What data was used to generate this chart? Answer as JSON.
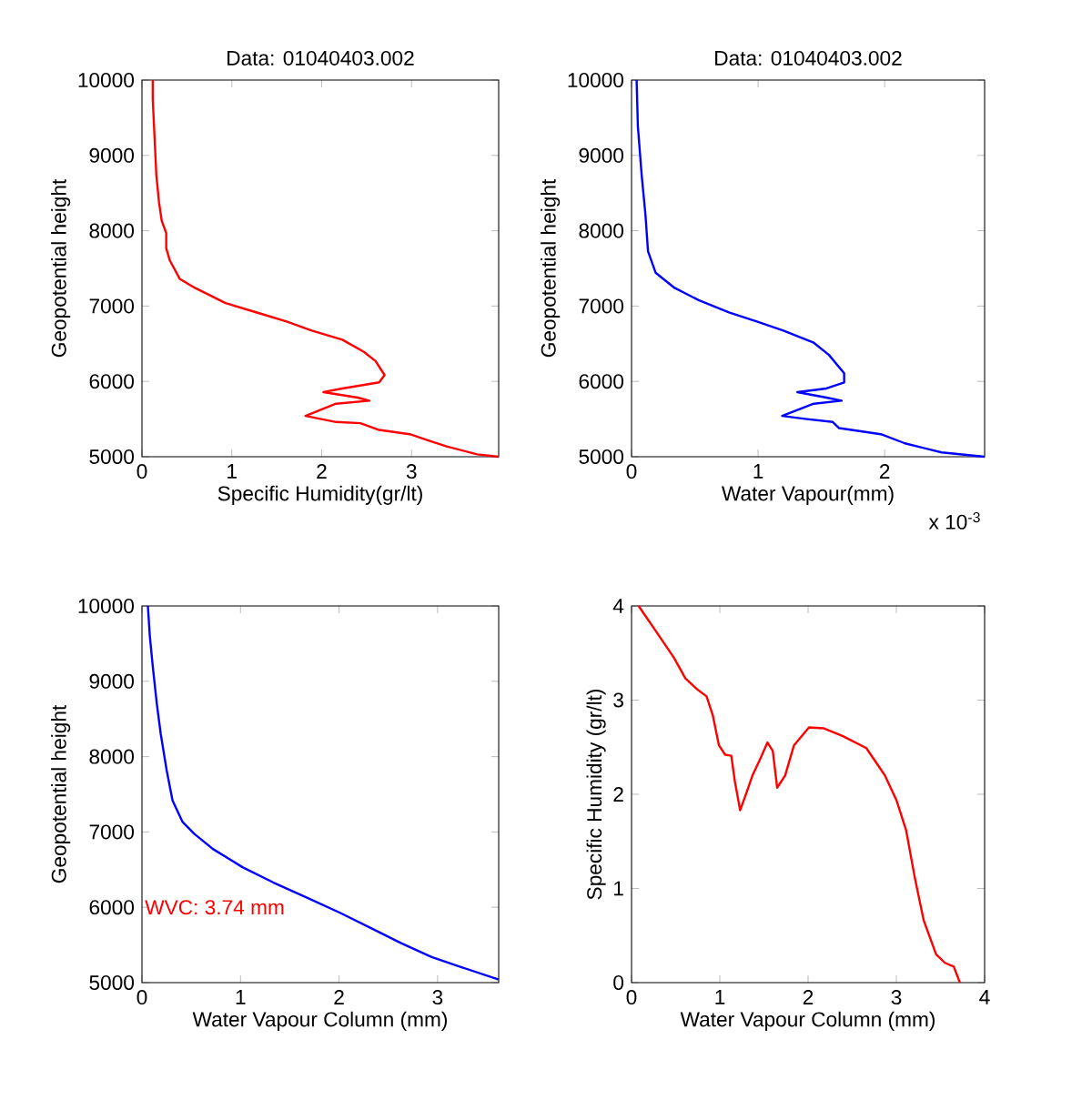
{
  "chart_data": [
    {
      "type": "line",
      "title": "Data: 01040403.002",
      "xlabel": "Specific Humidity(gr/lt)",
      "ylabel": "Geopotential height",
      "xlim": [
        0,
        3.97
      ],
      "ylim": [
        5000,
        10000
      ],
      "xticks": [
        0,
        1,
        2,
        3
      ],
      "yticks": [
        5000,
        6000,
        7000,
        8000,
        9000,
        10000
      ],
      "series": [
        {
          "color": "#ff0000",
          "x": [
            0.12,
            0.12,
            0.16,
            0.19,
            0.22,
            0.27,
            0.27,
            0.31,
            0.42,
            0.59,
            0.93,
            1.27,
            1.61,
            1.89,
            2.23,
            2.47,
            2.6,
            2.7,
            2.64,
            2.23,
            2.02,
            2.4,
            2.53,
            2.16,
            1.82,
            2.16,
            2.43,
            2.64,
            2.98,
            3.18,
            3.39,
            3.73,
            3.97
          ],
          "values": [
            10000,
            9750,
            8738,
            8374,
            8131,
            7969,
            7767,
            7605,
            7362,
            7241,
            7039,
            6917,
            6796,
            6675,
            6553,
            6392,
            6270,
            6084,
            5987,
            5906,
            5858,
            5785,
            5744,
            5704,
            5542,
            5461,
            5445,
            5356,
            5299,
            5218,
            5137,
            5032,
            5000
          ]
        }
      ]
    },
    {
      "type": "line",
      "title": "Data: 01040403.002",
      "xlabel": "Water Vapour(mm)",
      "ylabel": "Geopotential height",
      "xlim": [
        0,
        2.79
      ],
      "ylim": [
        5000,
        10000
      ],
      "xticks": [
        0,
        1,
        2
      ],
      "yticks": [
        5000,
        6000,
        7000,
        8000,
        9000,
        10000
      ],
      "annotations": [
        "x 10$^{-3}$"
      ],
      "series": [
        {
          "color": "#0000ff",
          "x": [
            0.04,
            0.05,
            0.08,
            0.11,
            0.13,
            0.19,
            0.34,
            0.53,
            0.77,
            0.99,
            1.2,
            1.44,
            1.56,
            1.68,
            1.68,
            1.54,
            1.31,
            1.54,
            1.66,
            1.44,
            1.19,
            1.37,
            1.59,
            1.64,
            1.97,
            2.16,
            2.45,
            2.79
          ],
          "values": [
            10000,
            9385,
            8738,
            8212,
            7727,
            7443,
            7241,
            7079,
            6917,
            6796,
            6675,
            6513,
            6351,
            6108,
            5987,
            5906,
            5858,
            5785,
            5744,
            5704,
            5542,
            5502,
            5461,
            5380,
            5299,
            5178,
            5057,
            5000
          ]
        }
      ]
    },
    {
      "type": "line",
      "xlabel": "Water Vapour Column (mm)",
      "ylabel": "Geopotential height",
      "xlim": [
        0,
        3.62
      ],
      "ylim": [
        5000,
        10000
      ],
      "xticks": [
        0,
        1,
        2,
        3
      ],
      "yticks": [
        5000,
        6000,
        7000,
        8000,
        9000,
        10000
      ],
      "annotations": [
        "WVC: 3.74 mm"
      ],
      "series": [
        {
          "color": "#0000ff",
          "x": [
            0.06,
            0.08,
            0.11,
            0.15,
            0.19,
            0.25,
            0.31,
            0.41,
            0.53,
            0.72,
            1.02,
            1.33,
            1.7,
            2.01,
            2.32,
            2.63,
            2.94,
            3.25,
            3.62
          ],
          "values": [
            10000,
            9597,
            9194,
            8710,
            8306,
            7823,
            7419,
            7137,
            6976,
            6774,
            6532,
            6331,
            6113,
            5927,
            5726,
            5524,
            5339,
            5202,
            5040
          ]
        }
      ]
    },
    {
      "type": "line",
      "xlabel": "Water Vapour Column (mm)",
      "ylabel": "Specific Humidity (gr/lt)",
      "xlim": [
        0,
        4
      ],
      "ylim": [
        0,
        4
      ],
      "xticks": [
        0,
        1,
        2,
        3,
        4
      ],
      "yticks": [
        0,
        1,
        2,
        3,
        4
      ],
      "series": [
        {
          "color": "#ff0000",
          "x": [
            0.08,
            0.27,
            0.48,
            0.61,
            0.75,
            0.85,
            0.92,
            0.99,
            1.06,
            1.13,
            1.17,
            1.23,
            1.3,
            1.37,
            1.45,
            1.54,
            1.6,
            1.65,
            1.74,
            1.84,
            2.01,
            2.18,
            2.39,
            2.66,
            2.87,
            3.0,
            3.11,
            3.21,
            3.31,
            3.45,
            3.55,
            3.65,
            3.72
          ],
          "values": [
            4.0,
            3.74,
            3.45,
            3.23,
            3.11,
            3.04,
            2.84,
            2.52,
            2.42,
            2.41,
            2.14,
            1.83,
            2.01,
            2.2,
            2.36,
            2.55,
            2.46,
            2.07,
            2.2,
            2.52,
            2.71,
            2.7,
            2.62,
            2.49,
            2.2,
            1.94,
            1.62,
            1.11,
            0.66,
            0.3,
            0.21,
            0.17,
            0.0
          ]
        }
      ]
    }
  ]
}
